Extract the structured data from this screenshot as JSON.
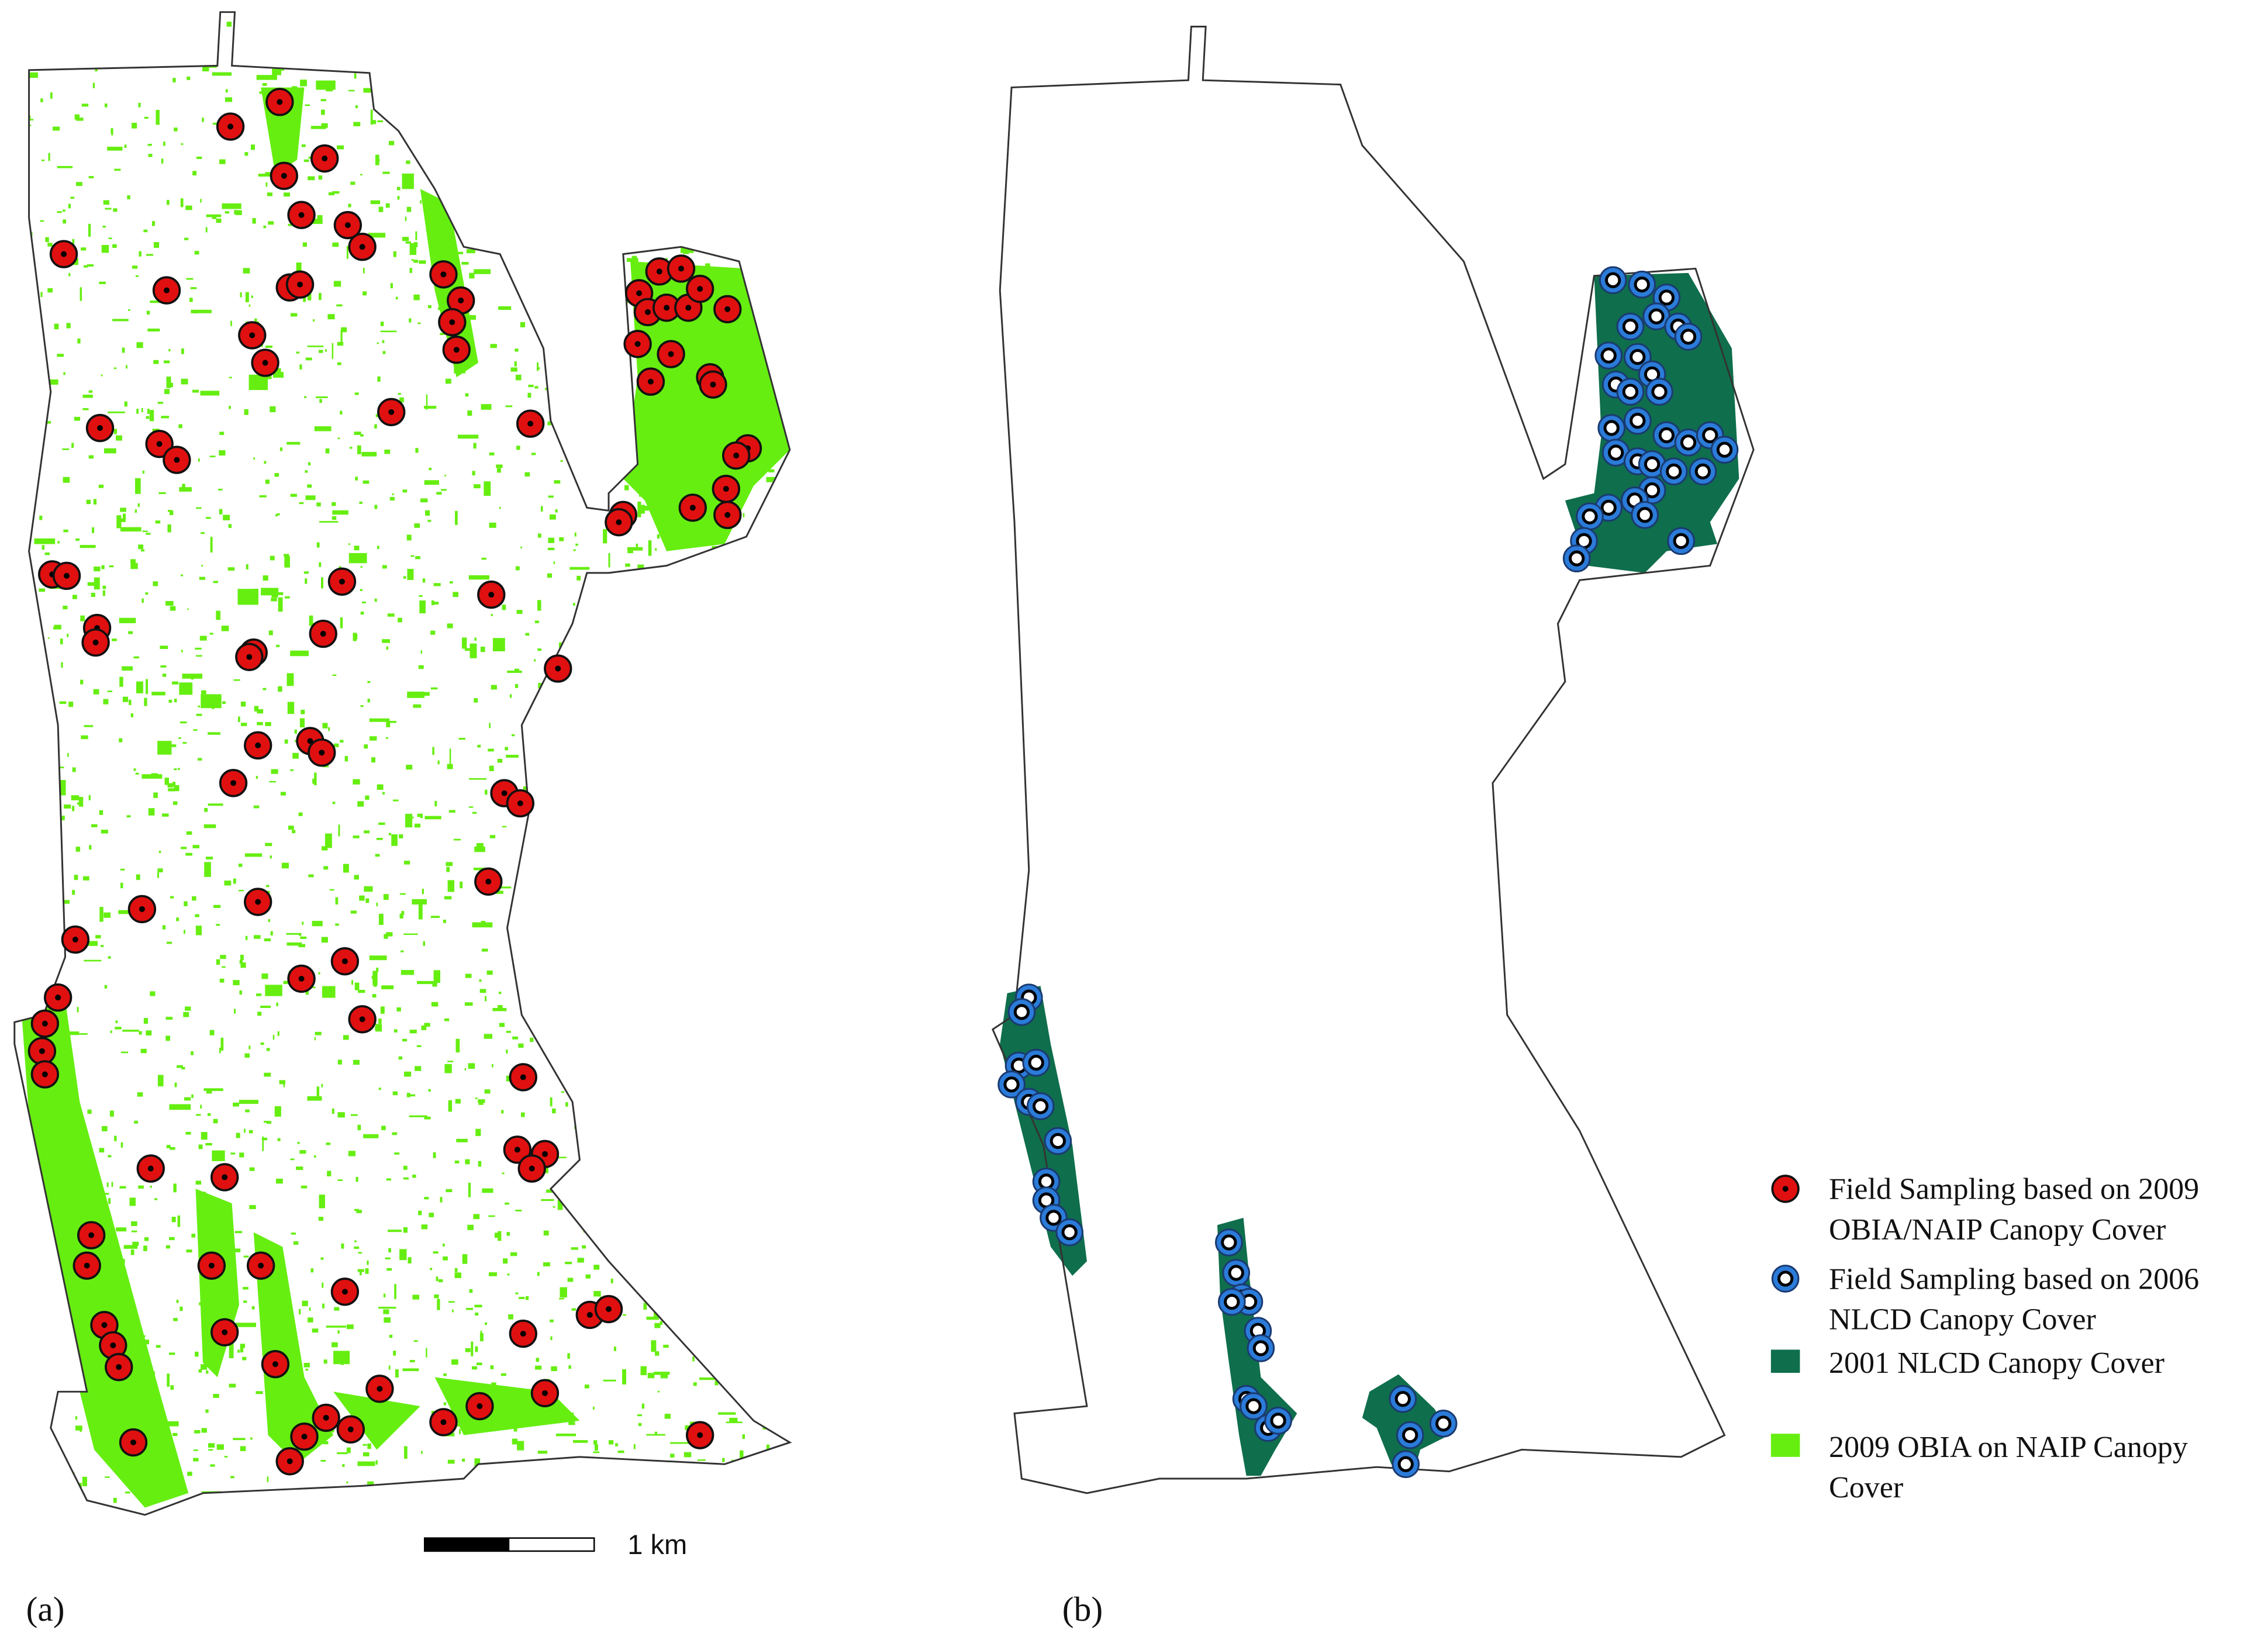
{
  "panels": [
    {
      "label": "(a)"
    },
    {
      "label": "(b)"
    }
  ],
  "scale_bar": {
    "label": "1 km"
  },
  "legend": [
    {
      "label": [
        "Field Sampling based on 2009",
        "OBIA/NAIP  Canopy Cover"
      ],
      "color": "#e01010"
    },
    {
      "label": [
        "Field Sampling based on 2006",
        "NLCD Canopy Cover"
      ],
      "color": "#2b7bd9"
    },
    {
      "label": [
        "2001 NLCD Canopy Cover"
      ],
      "color": "#0f6e4c"
    },
    {
      "label": [
        "2009 OBIA  on NAIP Canopy",
        "Cover"
      ],
      "color": "#66ee11"
    }
  ]
}
